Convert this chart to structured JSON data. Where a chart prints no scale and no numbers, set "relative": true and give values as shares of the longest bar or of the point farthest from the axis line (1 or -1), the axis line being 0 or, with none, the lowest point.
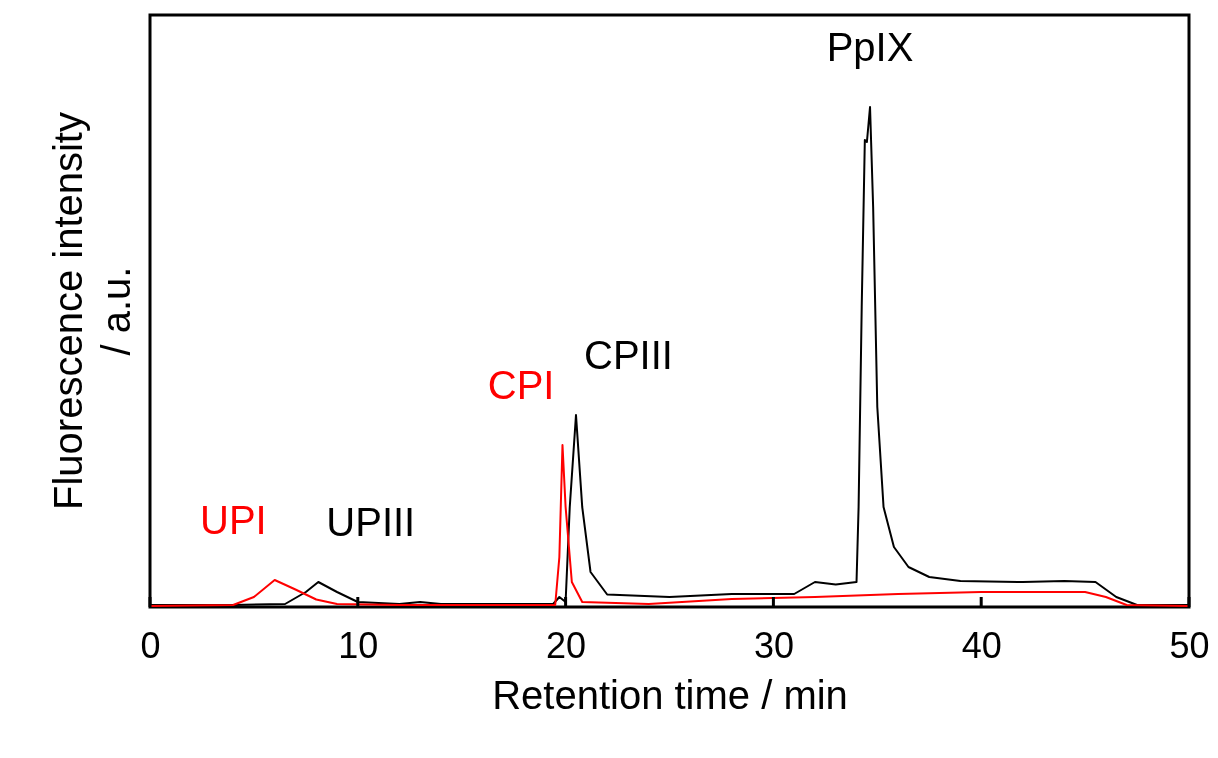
{
  "chart_data": {
    "type": "line",
    "relative": true,
    "xlabel": "Retention time / min",
    "ylabel": "Fluorescence intensity\n/ a.u.",
    "xlim": [
      0,
      50
    ],
    "xticks": [
      0,
      10,
      20,
      30,
      40,
      50
    ],
    "grid": false,
    "marker": "none",
    "line_style": "solid",
    "series": [
      {
        "color": "#000000",
        "x": [
          0,
          4,
          6.5,
          7.5,
          8.1,
          9,
          10,
          12,
          13,
          14,
          19.4,
          19.7,
          20.0,
          20.2,
          20.5,
          20.8,
          21.2,
          22,
          25,
          28,
          31,
          32,
          33,
          34,
          34.1,
          34.25,
          34.4,
          34.5,
          34.65,
          34.8,
          35,
          35.3,
          35.8,
          36.5,
          37.5,
          39,
          42,
          44,
          45.5,
          46.5,
          47.5,
          50
        ],
        "values": [
          0.004,
          0.004,
          0.006,
          0.03,
          0.05,
          0.03,
          0.01,
          0.006,
          0.01,
          0.006,
          0.006,
          0.02,
          0.01,
          0.2,
          0.384,
          0.2,
          0.07,
          0.025,
          0.02,
          0.026,
          0.026,
          0.05,
          0.045,
          0.05,
          0.2,
          0.6,
          0.934,
          0.93,
          1,
          0.8,
          0.4,
          0.2,
          0.12,
          0.08,
          0.06,
          0.052,
          0.05,
          0.052,
          0.05,
          0.02,
          0.004,
          0.004
        ]
      },
      {
        "color": "#ff0000",
        "x": [
          0,
          4,
          5,
          6,
          7,
          8,
          9,
          12,
          19.5,
          19.7,
          19.85,
          20.0,
          20.3,
          20.8,
          24,
          28,
          32,
          36,
          40,
          45,
          46,
          47,
          50
        ],
        "values": [
          0.002,
          0.004,
          0.02,
          0.054,
          0.035,
          0.015,
          0.006,
          0.004,
          0.004,
          0.1,
          0.324,
          0.2,
          0.05,
          0.01,
          0.006,
          0.016,
          0.02,
          0.026,
          0.03,
          0.03,
          0.02,
          0.004,
          0.002
        ]
      }
    ],
    "annotations": [
      {
        "text": "UPI",
        "x": 6,
        "y": 0.054
      },
      {
        "text": "UPIII",
        "x": 8.1,
        "y": 0.05
      },
      {
        "text": "CPI",
        "x": 19.85,
        "y": 0.324
      },
      {
        "text": "CPIII",
        "x": 20.5,
        "y": 0.384
      },
      {
        "text": "PpIX",
        "x": 34.65,
        "y": 1
      }
    ]
  }
}
